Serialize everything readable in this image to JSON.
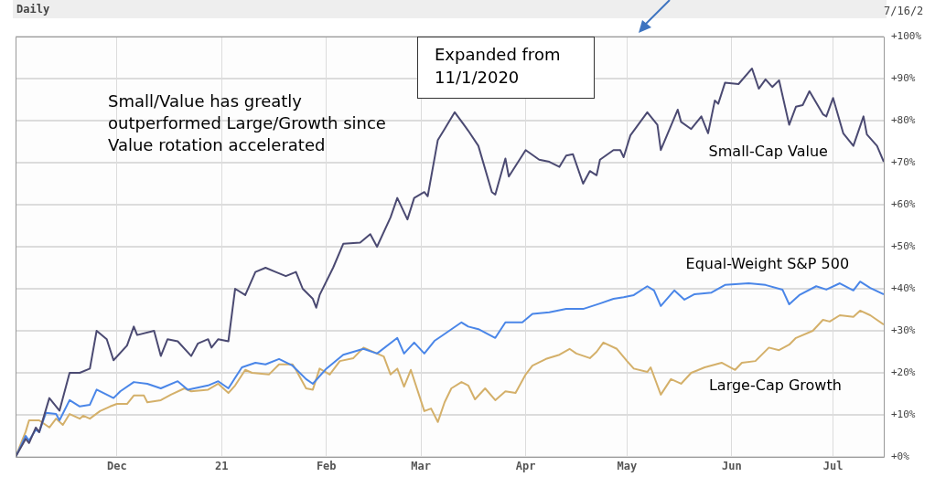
{
  "chart_data": {
    "type": "line",
    "title": "Daily",
    "xlim": [
      "2020-11-01",
      "2021-07-16"
    ],
    "xticks": [
      {
        "value": "2020-12-01",
        "label": "Dec"
      },
      {
        "value": "2021-01-01",
        "label": "21"
      },
      {
        "value": "2021-02-01",
        "label": "Feb"
      },
      {
        "value": "2021-03-01",
        "label": "Mar"
      },
      {
        "value": "2021-04-01",
        "label": "Apr"
      },
      {
        "value": "2021-05-01",
        "label": "May"
      },
      {
        "value": "2021-06-01",
        "label": "Jun"
      },
      {
        "value": "2021-07-01",
        "label": "Jul"
      }
    ],
    "ylim": [
      0,
      100
    ],
    "yticks": [
      {
        "value": 0,
        "label": "+0%"
      },
      {
        "value": 10,
        "label": "+10%"
      },
      {
        "value": 20,
        "label": "+20%"
      },
      {
        "value": 30,
        "label": "+30%"
      },
      {
        "value": 40,
        "label": "+40%"
      },
      {
        "value": 50,
        "label": "+50%"
      },
      {
        "value": 60,
        "label": "+60%"
      },
      {
        "value": 70,
        "label": "+70%"
      },
      {
        "value": 80,
        "label": "+80%"
      },
      {
        "value": 90,
        "label": "+90%"
      },
      {
        "value": 100,
        "label": "+100%"
      }
    ],
    "grid": true,
    "legend": false,
    "marker": "none",
    "line_style": "solid",
    "annotations": [
      "Small/Value has greatly outperformed Large/Growth since Value rotation accelerated",
      "Expanded from 11/1/2020",
      "7/16/2"
    ],
    "series": [
      {
        "name": "Small-Cap Value",
        "color": "#4b4a72",
        "x": [
          "2020-11-01",
          "2020-11-04",
          "2020-11-05",
          "2020-11-07",
          "2020-11-08",
          "2020-11-11",
          "2020-11-14",
          "2020-11-17",
          "2020-11-20",
          "2020-11-23",
          "2020-11-25",
          "2020-11-28",
          "2020-11-30",
          "2020-12-04",
          "2020-12-06",
          "2020-12-07",
          "2020-12-12",
          "2020-12-14",
          "2020-12-16",
          "2020-12-19",
          "2020-12-23",
          "2020-12-25",
          "2020-12-28",
          "2020-12-29",
          "2020-12-31",
          "2021-01-03",
          "2021-01-05",
          "2021-01-08",
          "2021-01-11",
          "2021-01-14",
          "2021-01-17",
          "2021-01-20",
          "2021-01-23",
          "2021-01-25",
          "2021-01-28",
          "2021-01-29",
          "2021-01-30",
          "2021-02-03",
          "2021-02-06",
          "2021-02-11",
          "2021-02-14",
          "2021-02-16",
          "2021-02-20",
          "2021-02-22",
          "2021-02-25",
          "2021-02-27",
          "2021-03-02",
          "2021-03-03",
          "2021-03-06",
          "2021-03-08",
          "2021-03-11",
          "2021-03-15",
          "2021-03-18",
          "2021-03-22",
          "2021-03-23",
          "2021-03-26",
          "2021-03-27",
          "2021-04-01",
          "2021-04-05",
          "2021-04-08",
          "2021-04-11",
          "2021-04-13",
          "2021-04-15",
          "2021-04-18",
          "2021-04-20",
          "2021-04-22",
          "2021-04-23",
          "2021-04-27",
          "2021-04-29",
          "2021-04-30",
          "2021-05-02",
          "2021-05-07",
          "2021-05-10",
          "2021-05-11",
          "2021-05-16",
          "2021-05-17",
          "2021-05-20",
          "2021-05-23",
          "2021-05-25",
          "2021-05-27",
          "2021-05-28",
          "2021-05-30",
          "2021-06-03",
          "2021-06-07",
          "2021-06-09",
          "2021-06-11",
          "2021-06-13",
          "2021-06-15",
          "2021-06-18",
          "2021-06-20",
          "2021-06-22",
          "2021-06-24",
          "2021-06-28",
          "2021-06-29",
          "2021-07-01",
          "2021-07-04",
          "2021-07-07",
          "2021-07-10",
          "2021-07-11",
          "2021-07-14",
          "2021-07-16"
        ],
        "values": [
          0,
          4.3,
          3.3,
          7,
          5.9,
          14,
          11,
          20,
          20,
          21,
          30,
          28,
          23,
          26.5,
          31,
          29,
          30,
          24,
          28,
          27.5,
          24,
          27,
          28,
          26,
          28,
          27.5,
          40,
          38.5,
          44,
          45,
          44,
          43,
          44,
          40,
          37.6,
          35.5,
          38.5,
          45,
          50.7,
          51,
          53,
          50,
          57,
          61.6,
          56.5,
          61.6,
          63,
          62,
          75.4,
          78,
          82,
          77.6,
          74,
          63,
          62.4,
          71,
          66.7,
          73,
          70.7,
          70.2,
          69,
          71.7,
          72,
          65,
          68,
          67,
          70.7,
          73,
          73,
          71.3,
          76.5,
          82,
          79,
          73,
          82.6,
          79.7,
          78,
          81,
          77,
          84.8,
          84,
          89,
          88.7,
          92.4,
          87.6,
          89.8,
          88,
          89.6,
          79,
          83.3,
          83.7,
          87,
          81.5,
          81,
          85.4,
          77,
          74,
          81,
          76.7,
          74,
          70.2
        ]
      },
      {
        "name": "Equal-Weight S&P 500",
        "color": "#4a86e8",
        "x": [
          "2020-11-01",
          "2020-11-04",
          "2020-11-05",
          "2020-11-07",
          "2020-11-08",
          "2020-11-10",
          "2020-11-13",
          "2020-11-14",
          "2020-11-17",
          "2020-11-20",
          "2020-11-23",
          "2020-11-25",
          "2020-11-28",
          "2020-11-30",
          "2020-12-02",
          "2020-12-06",
          "2020-12-10",
          "2020-12-14",
          "2020-12-19",
          "2020-12-22",
          "2020-12-28",
          "2020-12-31",
          "2021-01-03",
          "2021-01-07",
          "2021-01-11",
          "2021-01-14",
          "2021-01-18",
          "2021-01-22",
          "2021-01-26",
          "2021-01-28",
          "2021-02-01",
          "2021-02-06",
          "2021-02-12",
          "2021-02-16",
          "2021-02-22",
          "2021-02-24",
          "2021-02-27",
          "2021-03-02",
          "2021-03-05",
          "2021-03-07",
          "2021-03-13",
          "2021-03-15",
          "2021-03-18",
          "2021-03-23",
          "2021-03-26",
          "2021-03-31",
          "2021-04-03",
          "2021-04-08",
          "2021-04-13",
          "2021-04-18",
          "2021-04-23",
          "2021-04-27",
          "2021-04-30",
          "2021-05-03",
          "2021-05-07",
          "2021-05-09",
          "2021-05-11",
          "2021-05-15",
          "2021-05-18",
          "2021-05-21",
          "2021-05-26",
          "2021-05-30",
          "2021-06-06",
          "2021-06-11",
          "2021-06-16",
          "2021-06-18",
          "2021-06-21",
          "2021-06-26",
          "2021-06-29",
          "2021-07-03",
          "2021-07-07",
          "2021-07-09",
          "2021-07-12",
          "2021-07-16"
        ],
        "values": [
          0,
          5,
          3.9,
          6.5,
          5.9,
          10.5,
          10.2,
          8.7,
          13.5,
          12,
          12.4,
          16,
          14.8,
          14,
          15.6,
          17.8,
          17.4,
          16.3,
          18,
          16,
          17,
          18,
          16.3,
          21.3,
          22.4,
          22,
          23.3,
          21.7,
          18.5,
          17.4,
          21,
          24.3,
          25.7,
          24.6,
          28.3,
          24.6,
          27.2,
          24.6,
          27.6,
          28.7,
          32,
          31,
          30.4,
          28.3,
          32,
          32,
          34,
          34.4,
          35.2,
          35.2,
          36.5,
          37.6,
          38,
          38.5,
          40.6,
          39.6,
          35.9,
          39.6,
          37.4,
          38.7,
          39.1,
          40.9,
          41.3,
          40.9,
          39.8,
          36.3,
          38.5,
          40.6,
          39.8,
          41.3,
          39.6,
          41.7,
          40.2,
          38.7
        ]
      },
      {
        "name": "Large-Cap Growth",
        "color": "#d4b06a",
        "x": [
          "2020-11-01",
          "2020-11-04",
          "2020-11-05",
          "2020-11-07",
          "2020-11-08",
          "2020-11-11",
          "2020-11-13",
          "2020-11-15",
          "2020-11-17",
          "2020-11-20",
          "2020-11-21",
          "2020-11-23",
          "2020-11-26",
          "2020-11-29",
          "2020-12-01",
          "2020-12-04",
          "2020-12-06",
          "2020-12-09",
          "2020-12-10",
          "2020-12-14",
          "2020-12-17",
          "2020-12-21",
          "2020-12-23",
          "2020-12-28",
          "2020-12-31",
          "2021-01-03",
          "2021-01-05",
          "2021-01-08",
          "2021-01-10",
          "2021-01-15",
          "2021-01-18",
          "2021-01-22",
          "2021-01-23",
          "2021-01-26",
          "2021-01-28",
          "2021-01-30",
          "2021-02-02",
          "2021-02-05",
          "2021-02-09",
          "2021-02-12",
          "2021-02-16",
          "2021-02-18",
          "2021-02-20",
          "2021-02-22",
          "2021-02-24",
          "2021-02-26",
          "2021-03-02",
          "2021-03-04",
          "2021-03-06",
          "2021-03-08",
          "2021-03-10",
          "2021-03-13",
          "2021-03-15",
          "2021-03-17",
          "2021-03-20",
          "2021-03-23",
          "2021-03-26",
          "2021-03-29",
          "2021-04-01",
          "2021-04-03",
          "2021-04-07",
          "2021-04-11",
          "2021-04-14",
          "2021-04-16",
          "2021-04-20",
          "2021-04-22",
          "2021-04-24",
          "2021-04-28",
          "2021-05-01",
          "2021-05-03",
          "2021-05-07",
          "2021-05-08",
          "2021-05-11",
          "2021-05-14",
          "2021-05-17",
          "2021-05-20",
          "2021-05-24",
          "2021-05-29",
          "2021-06-02",
          "2021-06-04",
          "2021-06-08",
          "2021-06-12",
          "2021-06-15",
          "2021-06-18",
          "2021-06-20",
          "2021-06-25",
          "2021-06-28",
          "2021-06-30",
          "2021-07-03",
          "2021-07-07",
          "2021-07-09",
          "2021-07-12",
          "2021-07-16"
        ],
        "values": [
          0,
          6,
          8.7,
          8.7,
          8.7,
          7,
          9.1,
          7.6,
          10.2,
          9.1,
          9.8,
          9.1,
          10.9,
          12,
          12.6,
          12.6,
          14.6,
          14.6,
          13,
          13.5,
          14.8,
          16.3,
          15.6,
          16,
          17.4,
          15.2,
          17,
          20.7,
          20,
          19.6,
          22,
          22,
          20.7,
          16.3,
          16,
          21,
          19.6,
          22.8,
          23.5,
          26,
          24.6,
          23.9,
          19.6,
          21,
          16.7,
          20.7,
          10.9,
          11.5,
          8.3,
          13,
          16.3,
          17.8,
          17,
          13.7,
          16.3,
          13.5,
          15.6,
          15.2,
          19.6,
          21.7,
          23.3,
          24.3,
          25.7,
          24.6,
          23.5,
          25,
          27.2,
          25.7,
          22.8,
          21,
          20.2,
          21.3,
          14.8,
          18.5,
          17.4,
          20,
          21.3,
          22.4,
          20.7,
          22.4,
          22.8,
          26,
          25.4,
          26.7,
          28.3,
          30,
          32.6,
          32.2,
          33.7,
          33.3,
          34.8,
          33.7,
          31.5
        ]
      }
    ]
  }
}
